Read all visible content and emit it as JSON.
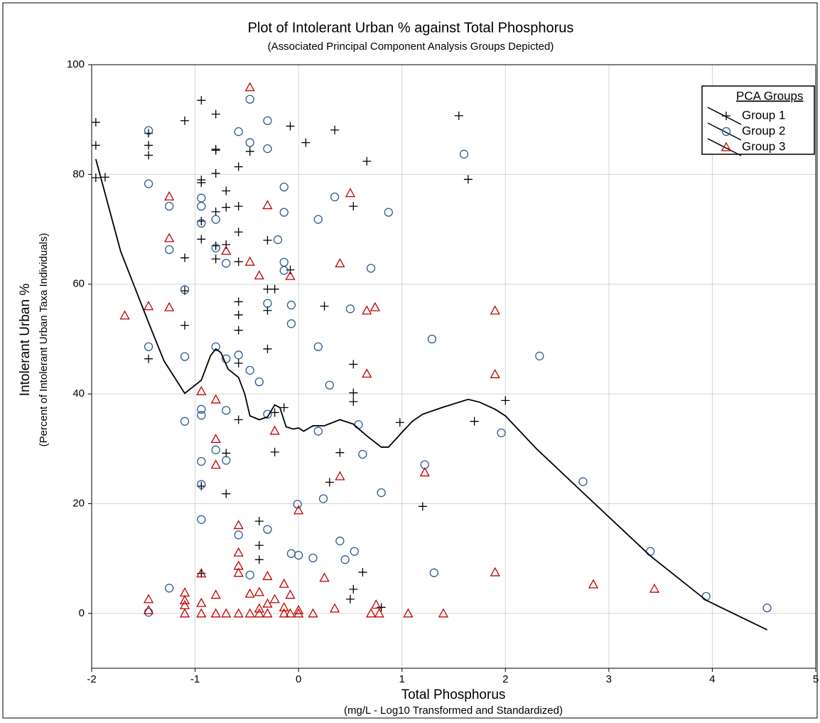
{
  "chart_data": {
    "type": "scatter",
    "title": "Plot of Intolerant Urban % against Total Phosphorus",
    "subtitle": "(Associated Principal Component Analysis Groups Depicted)",
    "x_label": "Total Phosphorus",
    "x_sublabel": "(mg/L - Log10 Transformed and Standardized)",
    "y_label": "Intolerant Urban %",
    "y_sublabel": "(Percent of Intolerant Urban Taxa Individuals)",
    "xlim": [
      -2,
      5
    ],
    "xticks": [
      -2,
      -1,
      0,
      1,
      2,
      3,
      4,
      5
    ],
    "ylim": [
      -10,
      100
    ],
    "yticks": [
      0,
      20,
      40,
      60,
      80,
      100
    ],
    "grid": true,
    "legend": "upper right",
    "legend_title": "PCA Groups",
    "series": [
      {
        "name": "Group 1",
        "mode": "markers",
        "marker": "plus",
        "color": "#000000",
        "x": [
          -1.96,
          -1.96,
          -1.96,
          -1.87,
          -1.45,
          -1.45,
          -1.45,
          -1.45,
          -1.1,
          -1.1,
          -1.1,
          -1.1,
          -0.94,
          -0.94,
          -0.94,
          -0.94,
          -0.94,
          -0.94,
          -0.94,
          -0.8,
          -0.8,
          -0.8,
          -0.8,
          -0.8,
          -0.8,
          -0.8,
          -0.7,
          -0.7,
          -0.7,
          -0.7,
          -0.7,
          -0.58,
          -0.58,
          -0.58,
          -0.58,
          -0.58,
          -0.58,
          -0.58,
          -0.58,
          -0.58,
          -0.47,
          -0.38,
          -0.38,
          -0.38,
          -0.3,
          -0.3,
          -0.3,
          -0.3,
          -0.23,
          -0.23,
          -0.23,
          -0.14,
          -0.08,
          -0.08,
          0.07,
          0.25,
          0.3,
          0.35,
          0.4,
          0.5,
          0.53,
          0.53,
          0.53,
          0.53,
          0.53,
          0.62,
          0.66,
          0.8,
          0.98,
          1.2,
          1.55,
          1.64,
          1.7,
          2.0
        ],
        "values": [
          89.5,
          85.3,
          79.4,
          79.5,
          87.5,
          85.3,
          83.5,
          46.4,
          89.8,
          64.8,
          58.8,
          52.5,
          93.5,
          79.0,
          78.5,
          71.5,
          68.2,
          23.2,
          7.3,
          91,
          84.6,
          84.4,
          80.2,
          73.2,
          67.0,
          64.6,
          77,
          74,
          67.2,
          29.2,
          21.8,
          81.4,
          74.2,
          69.5,
          64.1,
          56.8,
          54.4,
          51.6,
          45.6,
          35.3,
          84.2,
          16.8,
          12.4,
          9.8,
          68,
          59.1,
          55.2,
          48.2,
          59.1,
          36.6,
          29.4,
          37.5,
          88.8,
          62.6,
          85.8,
          56,
          23.9,
          88.1,
          29.3,
          2.6,
          74.2,
          45.4,
          40.2,
          38.6,
          4.4,
          7.5,
          82.4,
          1.1,
          34.8,
          19.5,
          90.7,
          79.1,
          35.0,
          38.8
        ]
      },
      {
        "name": "Group 2",
        "mode": "markers",
        "marker": "circle",
        "color": "#2e5b95",
        "x": [
          -1.45,
          -1.45,
          -1.45,
          -1.45,
          -1.25,
          -1.25,
          -1.25,
          -1.1,
          -1.1,
          -1.1,
          -0.94,
          -0.94,
          -0.94,
          -0.94,
          -0.94,
          -0.94,
          -0.94,
          -0.94,
          -0.8,
          -0.8,
          -0.8,
          -0.8,
          -0.7,
          -0.7,
          -0.7,
          -0.7,
          -0.58,
          -0.58,
          -0.58,
          -0.47,
          -0.47,
          -0.47,
          -0.47,
          -0.38,
          -0.3,
          -0.3,
          -0.3,
          -0.3,
          -0.3,
          -0.2,
          -0.14,
          -0.14,
          -0.14,
          -0.14,
          -0.07,
          -0.07,
          -0.07,
          -0.01,
          0.0,
          0.14,
          0.19,
          0.19,
          0.19,
          0.24,
          0.3,
          0.35,
          0.4,
          0.45,
          0.5,
          0.54,
          0.58,
          0.62,
          0.7,
          0.8,
          0.87,
          1.22,
          1.29,
          1.31,
          1.6,
          1.96,
          2.33,
          2.75,
          3.4,
          3.94,
          4.53
        ],
        "values": [
          88,
          78.3,
          48.6,
          0.2,
          74.2,
          66.3,
          4.6,
          59,
          46.8,
          35,
          75.7,
          74.2,
          71.1,
          37.2,
          36.1,
          27.7,
          23.5,
          17.1,
          71.8,
          66.6,
          48.6,
          29.8,
          63.8,
          46.4,
          37,
          27.9,
          87.8,
          47.1,
          14.3,
          93.7,
          85.8,
          44.3,
          7,
          42.2,
          89.8,
          84.7,
          56.5,
          36.3,
          15.3,
          68.1,
          77.7,
          73.1,
          64,
          62.5,
          56.2,
          52.8,
          10.9,
          19.9,
          10.6,
          10.1,
          71.8,
          48.6,
          33.2,
          20.9,
          41.6,
          75.9,
          13.2,
          9.8,
          55.5,
          11.3,
          34.4,
          29,
          62.9,
          22,
          73.1,
          27.1,
          50,
          7.4,
          83.7,
          32.9,
          46.9,
          24,
          11.3,
          3.1,
          1.0
        ]
      },
      {
        "name": "Group 3",
        "mode": "markers",
        "marker": "triangle",
        "color": "#c00000",
        "x": [
          -1.68,
          -1.45,
          -1.45,
          -1.45,
          -1.25,
          -1.25,
          -1.25,
          -1.1,
          -1.1,
          -1.1,
          -1.1,
          -0.94,
          -0.94,
          -0.94,
          -0.94,
          -0.8,
          -0.8,
          -0.8,
          -0.8,
          -0.8,
          -0.7,
          -0.7,
          -0.58,
          -0.58,
          -0.58,
          -0.58,
          -0.58,
          -0.47,
          -0.47,
          -0.47,
          -0.47,
          -0.38,
          -0.38,
          -0.38,
          -0.38,
          -0.3,
          -0.3,
          -0.3,
          -0.3,
          -0.23,
          -0.23,
          -0.14,
          -0.14,
          -0.14,
          -0.08,
          -0.08,
          -0.08,
          0,
          0,
          0,
          0.14,
          0.25,
          0.35,
          0.4,
          0.4,
          0.5,
          0.66,
          0.66,
          0.7,
          0.74,
          0.75,
          0.78,
          1.06,
          1.22,
          1.4,
          1.9,
          1.9,
          1.9,
          2.85,
          3.44
        ],
        "values": [
          54.3,
          56,
          2.6,
          0.6,
          76,
          68.4,
          55.8,
          3.8,
          2.4,
          1.5,
          0,
          40.5,
          7.3,
          1.9,
          0,
          39,
          31.8,
          27.1,
          3.4,
          0,
          66.1,
          0,
          16.1,
          11.1,
          8.7,
          7.4,
          0,
          95.9,
          64.1,
          3.6,
          0,
          61.6,
          3.9,
          0.9,
          0,
          74.4,
          6.8,
          1.8,
          0,
          33.3,
          2.6,
          5.4,
          1.1,
          0,
          61.5,
          3.4,
          0,
          18.8,
          0.6,
          0,
          0,
          6.5,
          0.9,
          63.8,
          25,
          76.6,
          55.2,
          43.7,
          0,
          55.8,
          1.6,
          0,
          0,
          25.7,
          0,
          55.2,
          43.6,
          7.5,
          5.3,
          4.5
        ]
      },
      {
        "mode": "line",
        "color": "#000000",
        "x": [
          -1.96,
          -1.72,
          -1.45,
          -1.3,
          -1.1,
          -0.94,
          -0.85,
          -0.8,
          -0.75,
          -0.68,
          -0.58,
          -0.52,
          -0.47,
          -0.38,
          -0.3,
          -0.23,
          -0.18,
          -0.12,
          -0.05,
          0,
          0.05,
          0.14,
          0.25,
          0.4,
          0.53,
          0.65,
          0.8,
          0.87,
          1,
          1.1,
          1.2,
          1.4,
          1.64,
          1.75,
          1.9,
          2.0,
          2.3,
          2.75,
          3.4,
          3.94,
          4.53
        ],
        "values": [
          82.8,
          66,
          53,
          46,
          40.1,
          42.5,
          47,
          48.2,
          47.5,
          44.5,
          43,
          40,
          36,
          35.3,
          35.8,
          38,
          37.5,
          34,
          33.6,
          33.8,
          33.2,
          34.2,
          34.2,
          35.3,
          34.5,
          32.5,
          30.3,
          30.3,
          33,
          35,
          36.3,
          37.6,
          39,
          38.5,
          37.2,
          36,
          30,
          22,
          10.5,
          2.4,
          -3
        ]
      }
    ]
  }
}
